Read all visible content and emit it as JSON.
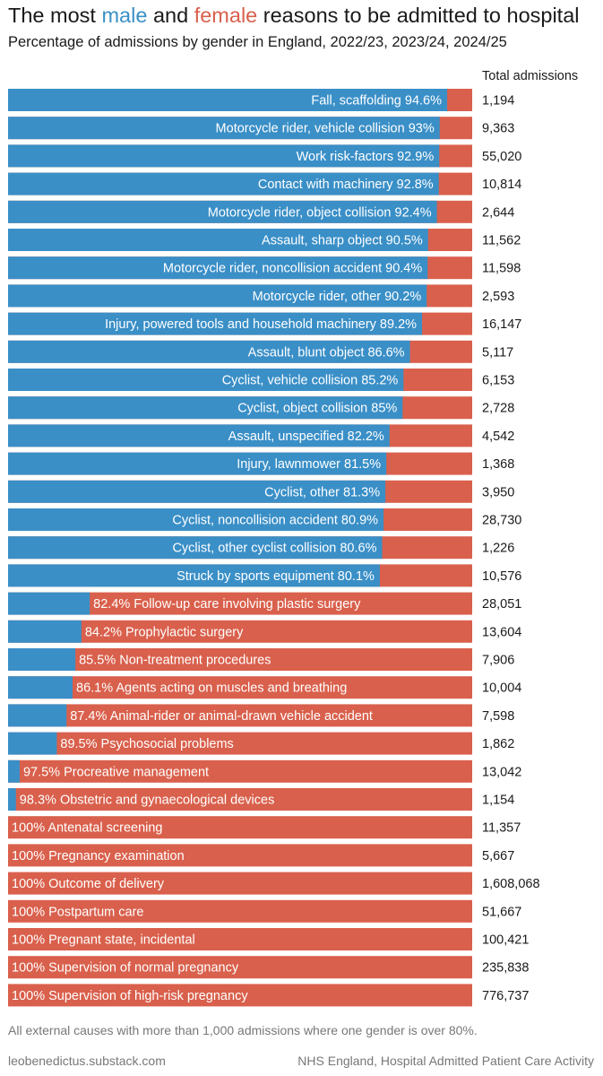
{
  "title": {
    "prefix": "The most ",
    "male_word": "male",
    "middle": " and ",
    "female_word": "female",
    "suffix": " reasons to be admitted to hospital"
  },
  "subtitle": "Percentage of admissions by gender in England, 2022/23, 2023/24, 2024/25",
  "column_header": "Total admissions",
  "note": "All external causes with more than 1,000 admissions where one gender is over 80%.",
  "footer": {
    "left": "leobenedictus.substack.com",
    "right": "NHS England, Hospital Admitted Patient Care Activity"
  },
  "colors": {
    "male": "#3a8fc7",
    "female": "#d9604c"
  },
  "chart_data": {
    "type": "bar",
    "orientation": "horizontal",
    "stacked": true,
    "series": [
      {
        "name": "male",
        "color": "#3a8fc7"
      },
      {
        "name": "female",
        "color": "#d9604c"
      }
    ],
    "xlim": [
      0,
      100
    ],
    "rows": [
      {
        "label": "Fall, scaffolding 94.6%",
        "dominant": "male",
        "male_pct": 94.6,
        "total": "1,194"
      },
      {
        "label": "Motorcycle rider, vehicle collision 93%",
        "dominant": "male",
        "male_pct": 93,
        "total": "9,363"
      },
      {
        "label": "Work risk-factors 92.9%",
        "dominant": "male",
        "male_pct": 92.9,
        "total": "55,020"
      },
      {
        "label": "Contact with machinery 92.8%",
        "dominant": "male",
        "male_pct": 92.8,
        "total": "10,814"
      },
      {
        "label": "Motorcycle rider, object collision 92.4%",
        "dominant": "male",
        "male_pct": 92.4,
        "total": "2,644"
      },
      {
        "label": "Assault, sharp object 90.5%",
        "dominant": "male",
        "male_pct": 90.5,
        "total": "11,562"
      },
      {
        "label": "Motorcycle rider, noncollision accident 90.4%",
        "dominant": "male",
        "male_pct": 90.4,
        "total": "11,598"
      },
      {
        "label": "Motorcycle rider, other 90.2%",
        "dominant": "male",
        "male_pct": 90.2,
        "total": "2,593"
      },
      {
        "label": "Injury, powered tools and household machinery 89.2%",
        "dominant": "male",
        "male_pct": 89.2,
        "total": "16,147"
      },
      {
        "label": "Assault, blunt object 86.6%",
        "dominant": "male",
        "male_pct": 86.6,
        "total": "5,117"
      },
      {
        "label": "Cyclist, vehicle collision 85.2%",
        "dominant": "male",
        "male_pct": 85.2,
        "total": "6,153"
      },
      {
        "label": "Cyclist, object collision 85%",
        "dominant": "male",
        "male_pct": 85,
        "total": "2,728"
      },
      {
        "label": "Assault, unspecified 82.2%",
        "dominant": "male",
        "male_pct": 82.2,
        "total": "4,542"
      },
      {
        "label": "Injury, lawnmower 81.5%",
        "dominant": "male",
        "male_pct": 81.5,
        "total": "1,368"
      },
      {
        "label": "Cyclist, other 81.3%",
        "dominant": "male",
        "male_pct": 81.3,
        "total": "3,950"
      },
      {
        "label": "Cyclist, noncollision accident 80.9%",
        "dominant": "male",
        "male_pct": 80.9,
        "total": "28,730"
      },
      {
        "label": "Cyclist, other cyclist collision 80.6%",
        "dominant": "male",
        "male_pct": 80.6,
        "total": "1,226"
      },
      {
        "label": "Struck by sports equipment 80.1%",
        "dominant": "male",
        "male_pct": 80.1,
        "total": "10,576"
      },
      {
        "label": "82.4% Follow-up care involving plastic surgery",
        "dominant": "female",
        "male_pct": 17.6,
        "total": "28,051"
      },
      {
        "label": "84.2% Prophylactic surgery",
        "dominant": "female",
        "male_pct": 15.8,
        "total": "13,604"
      },
      {
        "label": "85.5% Non-treatment procedures",
        "dominant": "female",
        "male_pct": 14.5,
        "total": "7,906"
      },
      {
        "label": "86.1% Agents acting on muscles and breathing",
        "dominant": "female",
        "male_pct": 13.9,
        "total": "10,004"
      },
      {
        "label": "87.4% Animal-rider or animal-drawn vehicle accident",
        "dominant": "female",
        "male_pct": 12.6,
        "total": "7,598"
      },
      {
        "label": "89.5% Psychosocial problems",
        "dominant": "female",
        "male_pct": 10.5,
        "total": "1,862"
      },
      {
        "label": "97.5% Procreative management",
        "dominant": "female",
        "male_pct": 2.5,
        "total": "13,042"
      },
      {
        "label": "98.3% Obstetric and gynaecological devices",
        "dominant": "female",
        "male_pct": 1.7,
        "total": "1,154"
      },
      {
        "label": "100% Antenatal screening",
        "dominant": "female",
        "male_pct": 0,
        "total": "11,357"
      },
      {
        "label": "100% Pregnancy examination",
        "dominant": "female",
        "male_pct": 0,
        "total": "5,667"
      },
      {
        "label": "100% Outcome of delivery",
        "dominant": "female",
        "male_pct": 0,
        "total": "1,608,068"
      },
      {
        "label": "100% Postpartum care",
        "dominant": "female",
        "male_pct": 0,
        "total": "51,667"
      },
      {
        "label": "100% Pregnant state, incidental",
        "dominant": "female",
        "male_pct": 0,
        "total": "100,421"
      },
      {
        "label": "100% Supervision of normal pregnancy",
        "dominant": "female",
        "male_pct": 0,
        "total": "235,838"
      },
      {
        "label": "100% Supervision of high-risk pregnancy",
        "dominant": "female",
        "male_pct": 0,
        "total": "776,737"
      }
    ]
  }
}
